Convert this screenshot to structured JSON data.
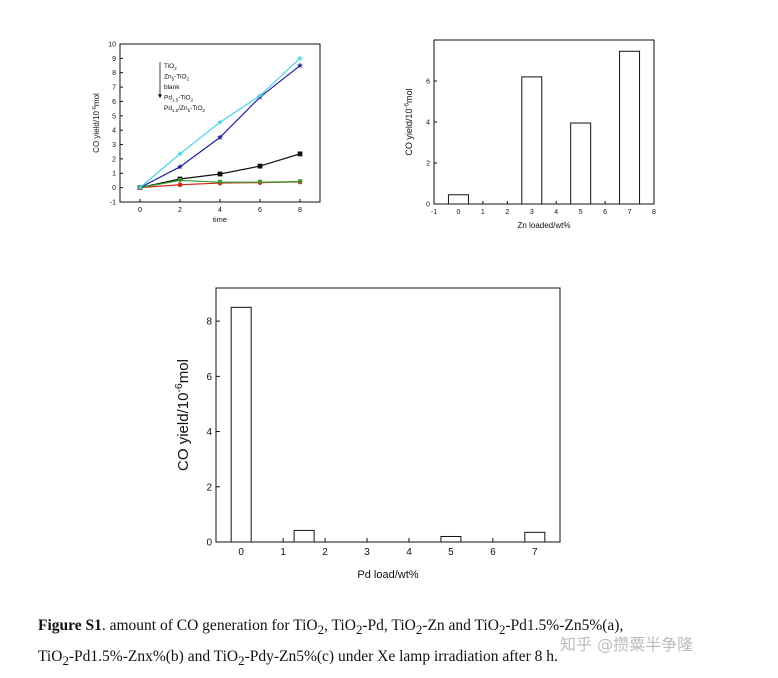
{
  "chart_data": [
    {
      "id": "a",
      "type": "line",
      "xlabel": "time",
      "ylabel_main": "CO yield/10",
      "ylabel_sup": "-6",
      "ylabel_tail": "mol",
      "xlim": [
        -1,
        9
      ],
      "ylim": [
        -1,
        10
      ],
      "xticks": [
        0,
        2,
        4,
        6,
        8
      ],
      "yticks": [
        -1,
        0,
        1,
        2,
        3,
        4,
        5,
        6,
        7,
        8,
        9,
        10
      ],
      "x": [
        0,
        2,
        4,
        6,
        8
      ],
      "series": [
        {
          "name": "TiO₂",
          "color": "#111111",
          "marker": "square",
          "values": [
            0,
            0.6,
            0.95,
            1.5,
            2.35
          ]
        },
        {
          "name": "Zn₅-TiO₂",
          "color": "#d42a1e",
          "marker": "circle",
          "values": [
            0,
            0.2,
            0.32,
            0.35,
            0.4
          ]
        },
        {
          "name": "blank",
          "color": "#2ca02c",
          "marker": "triangle-down",
          "values": [
            0,
            0.5,
            0.38,
            0.38,
            0.42
          ]
        },
        {
          "name": "Pd₁.₅-TiO₂",
          "color": "#1f1fa0",
          "marker": "star",
          "values": [
            0,
            1.45,
            3.5,
            6.3,
            8.5
          ]
        },
        {
          "name": "Pd₁.₅/Zn₅-TiO₂",
          "color": "#4dd2e6",
          "marker": "star",
          "values": [
            0,
            2.35,
            4.55,
            6.4,
            9.0
          ]
        }
      ],
      "legend_lines": [
        {
          "main": "TiO",
          "sub": "2",
          "rest": ""
        },
        {
          "main": "Zn",
          "sub": "5",
          "rest": "-TiO",
          "sub2": "2"
        },
        {
          "main": "blank",
          "sub": "",
          "rest": ""
        },
        {
          "main": "Pd",
          "sub": "1.5",
          "rest": "-TiO",
          "sub2": "2"
        },
        {
          "main": "Pd",
          "sub": "1.5",
          "rest": "/Zn",
          "sub2": "5",
          "rest2": "-TiO",
          "sub3": "2"
        }
      ]
    },
    {
      "id": "b",
      "type": "bar",
      "xlabel": "Zn loaded/wt%",
      "ylabel_main": "CO yield/10",
      "ylabel_sup": "-6",
      "ylabel_tail": "mol",
      "xlim": [
        -1,
        8
      ],
      "ylim": [
        0,
        8
      ],
      "xticks": [
        -1,
        0,
        1,
        2,
        3,
        4,
        5,
        6,
        7,
        8
      ],
      "yticks": [
        0,
        2,
        4,
        6
      ],
      "categories": [
        0,
        3,
        5,
        7
      ],
      "values": [
        0.45,
        6.2,
        3.95,
        7.45
      ]
    },
    {
      "id": "c",
      "type": "bar",
      "xlabel": "Pd load/wt%",
      "ylabel_main": "CO yield/10",
      "ylabel_sup": "-6",
      "ylabel_tail": "mol",
      "xlim": [
        -0.6,
        7.6
      ],
      "ylim": [
        0,
        9.2
      ],
      "xticks": [
        0,
        1,
        2,
        3,
        4,
        5,
        6,
        7
      ],
      "yticks": [
        0,
        2,
        4,
        6,
        8
      ],
      "categories": [
        0,
        1.5,
        5,
        7
      ],
      "values": [
        8.5,
        0.42,
        0.2,
        0.35
      ]
    }
  ],
  "caption": {
    "label": "Figure S1",
    "line1_text": ". amount of CO generation for TiO",
    "sub": "2",
    "part2": ", TiO",
    "part3": "-Pd, TiO",
    "part4": "-Zn and TiO",
    "part5": "-Pd1.5%-Zn5%(a),",
    "line2_a": "TiO",
    "line2_b": "-Pd1.5%-Znx%(b) and TiO",
    "line2_c": "-Pdy-Zn5%(c) under Xe lamp irradiation after 8 h."
  },
  "watermark": "知乎 @攒粟半争隆"
}
